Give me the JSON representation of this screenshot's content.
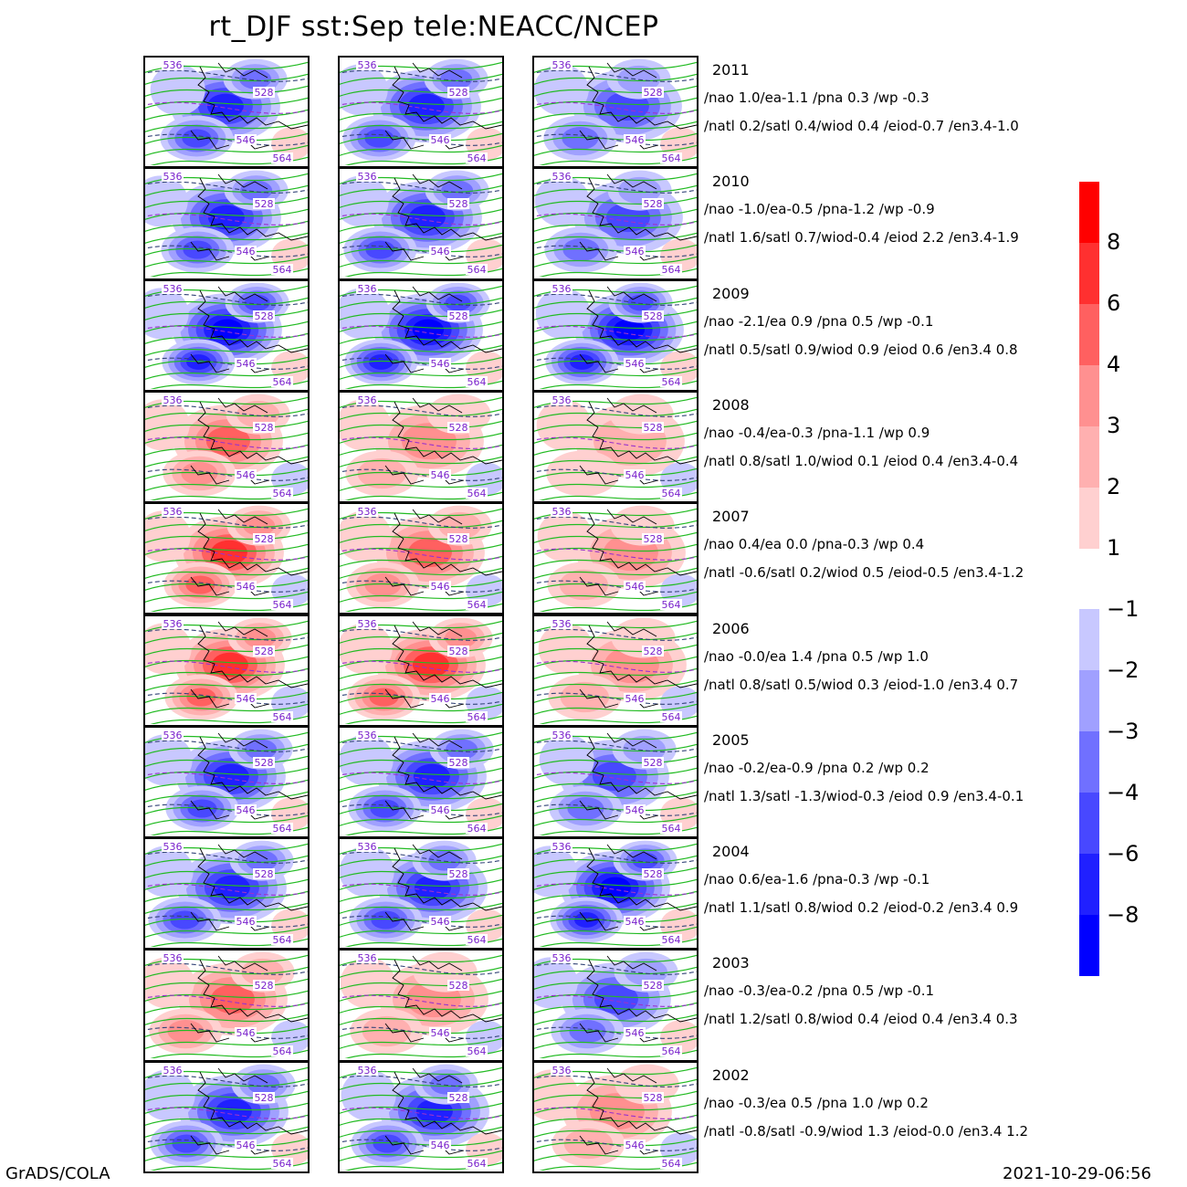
{
  "title": "rt_DJF sst:Sep tele:NEACC/NCEP",
  "footer_left": "GrADS/COLA",
  "footer_right": "2021-10-29-06:56",
  "contour_labels": [
    "536",
    "528",
    "546",
    "564"
  ],
  "colors": {
    "positive": [
      "#ffd0d0",
      "#ffb0b0",
      "#ff9090",
      "#ff6060",
      "#ff3030",
      "#ff0000"
    ],
    "negative": [
      "#c8c8ff",
      "#a0a0ff",
      "#7070ff",
      "#4848ff",
      "#2020ff",
      "#0000ff"
    ],
    "contour": "#22bb22",
    "dashed": "#9933cc"
  },
  "colorbar": {
    "positive_labels": [
      "8",
      "6",
      "4",
      "3",
      "2",
      "1"
    ],
    "negative_labels": [
      "-1",
      "-2",
      "-3",
      "-4",
      "-6",
      "-8"
    ]
  },
  "rows": [
    {
      "year": "2011",
      "line1": "/nao  1.0/ea-1.1 /pna 0.3 /wp  -0.3",
      "line2": "/natl  0.2/satl  0.4/wiod 0.4 /eiod-0.7 /en3.4-1.0",
      "tone": [
        -0.7,
        -0.6,
        -0.5
      ]
    },
    {
      "year": "2010",
      "line1": "/nao  -1.0/ea-0.5 /pna-1.2 /wp  -0.9",
      "line2": "/natl  1.6/satl  0.7/wiod-0.4 /eiod 2.2 /en3.4-1.9",
      "tone": [
        -0.6,
        -0.6,
        -0.5
      ]
    },
    {
      "year": "2009",
      "line1": "/nao  -2.1/ea 0.9 /pna 0.5 /wp  -0.1",
      "line2": "/natl  0.5/satl  0.9/wiod 0.9 /eiod 0.6 /en3.4 0.8",
      "tone": [
        -0.9,
        -0.8,
        -0.8
      ]
    },
    {
      "year": "2008",
      "line1": "/nao  -0.4/ea-0.3 /pna-1.1 /wp   0.9",
      "line2": "/natl  0.8/satl  1.0/wiod 0.1 /eiod 0.4 /en3.4-0.4",
      "tone": [
        0.5,
        0.3,
        0.1
      ]
    },
    {
      "year": "2007",
      "line1": "/nao  0.4/ea 0.0 /pna-0.3 /wp   0.4",
      "line2": "/natl  -0.6/satl  0.2/wiod 0.5 /eiod-0.5 /en3.4-1.2",
      "tone": [
        0.6,
        0.5,
        0.3
      ]
    },
    {
      "year": "2006",
      "line1": "/nao  -0.0/ea 1.4 /pna 0.5 /wp   1.0",
      "line2": "/natl  0.8/satl  0.5/wiod 0.3 /eiod-1.0 /en3.4 0.7",
      "tone": [
        0.7,
        0.6,
        0.4
      ]
    },
    {
      "year": "2005",
      "line1": "/nao  -0.2/ea-0.9 /pna 0.2 /wp   0.2",
      "line2": "/natl  1.3/satl  -1.3/wiod-0.3 /eiod 0.9 /en3.4-0.1",
      "tone": [
        -0.6,
        -0.6,
        -0.5
      ]
    },
    {
      "year": "2004",
      "line1": "/nao  0.6/ea-1.6 /pna-0.3 /wp  -0.1",
      "line2": "/natl  1.1/satl  0.8/wiod 0.2 /eiod-0.2 /en3.4 0.9",
      "tone": [
        -0.7,
        -0.6,
        -0.8
      ]
    },
    {
      "year": "2003",
      "line1": "/nao  -0.3/ea-0.2 /pna 0.5 /wp  -0.1",
      "line2": "/natl  1.2/satl  0.8/wiod 0.4 /eiod 0.4 /en3.4 0.3",
      "tone": [
        0.5,
        0.4,
        -0.5
      ]
    },
    {
      "year": "2002",
      "line1": "/nao  -0.3/ea 0.5 /pna 1.0 /wp   0.2",
      "line2": "/natl  -0.8/satl  -0.9/wiod 1.3 /eiod-0.0 /en3.4 1.2",
      "tone": [
        -0.7,
        -0.6,
        0.3
      ]
    }
  ]
}
